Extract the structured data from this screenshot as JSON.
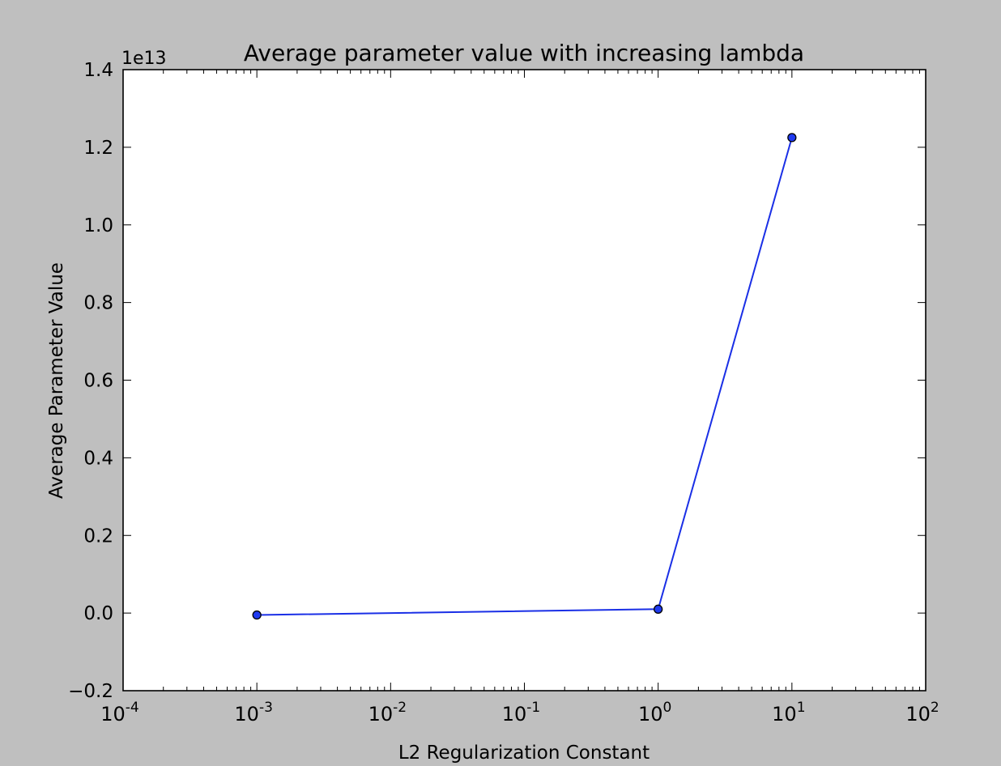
{
  "colors": {
    "figure_background": "#bfbfbf",
    "plot_background": "#ffffff",
    "line": "#1a2fe6",
    "marker_fill": "#1f3af0",
    "marker_edge": "#000000",
    "axes": "#000000"
  },
  "chart_data": {
    "type": "line",
    "title": "Average parameter value with increasing lambda",
    "xlabel": "L2 Regularization Constant",
    "ylabel": "Average Parameter Value",
    "xscale": "log",
    "yscale": "linear",
    "y_offset_label": "1e13",
    "xlim": [
      0.0001,
      100
    ],
    "ylim": [
      -0.2,
      1.4
    ],
    "grid": false,
    "legend": "none",
    "x_ticks": [
      {
        "value": 0.0001,
        "base": "10",
        "exp": "-4"
      },
      {
        "value": 0.001,
        "base": "10",
        "exp": "-3"
      },
      {
        "value": 0.01,
        "base": "10",
        "exp": "-2"
      },
      {
        "value": 0.1,
        "base": "10",
        "exp": "-1"
      },
      {
        "value": 1,
        "base": "10",
        "exp": "0"
      },
      {
        "value": 10,
        "base": "10",
        "exp": "1"
      },
      {
        "value": 100,
        "base": "10",
        "exp": "2"
      }
    ],
    "y_ticks": [
      {
        "value": -0.2,
        "label": "−0.2"
      },
      {
        "value": 0.0,
        "label": "0.0"
      },
      {
        "value": 0.2,
        "label": "0.2"
      },
      {
        "value": 0.4,
        "label": "0.4"
      },
      {
        "value": 0.6,
        "label": "0.6"
      },
      {
        "value": 0.8,
        "label": "0.8"
      },
      {
        "value": 1.0,
        "label": "1.0"
      },
      {
        "value": 1.2,
        "label": "1.2"
      },
      {
        "value": 1.4,
        "label": "1.4"
      }
    ],
    "series": [
      {
        "x": [
          0.001,
          1,
          10
        ],
        "y": [
          -0.005,
          0.01,
          1.225
        ],
        "marker": "circle"
      }
    ]
  }
}
